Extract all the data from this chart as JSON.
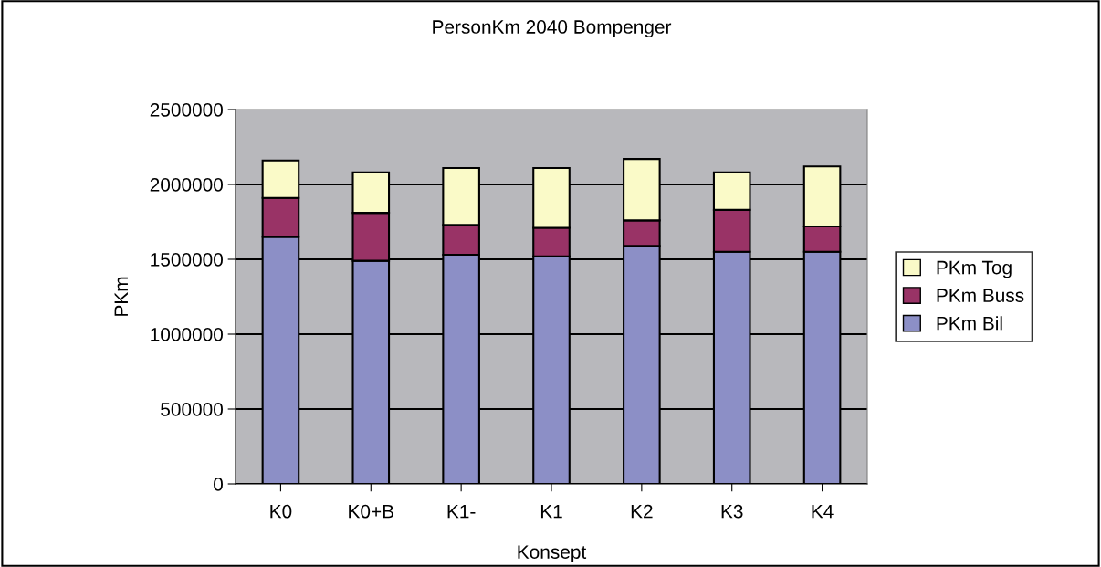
{
  "chart_data": {
    "type": "bar",
    "title": "PersonKm 2040 Bompenger",
    "xlabel": "Konsept",
    "ylabel": "PKm",
    "categories": [
      "K0",
      "K0+B",
      "K1-",
      "K1",
      "K2",
      "K3",
      "K4"
    ],
    "stacked": true,
    "series": [
      {
        "name": "PKm Bil",
        "color": "#8c8fc6",
        "values": [
          1650000,
          1490000,
          1530000,
          1520000,
          1590000,
          1550000,
          1550000
        ]
      },
      {
        "name": "PKm Buss",
        "color": "#993366",
        "values": [
          260000,
          320000,
          200000,
          190000,
          170000,
          280000,
          170000
        ]
      },
      {
        "name": "PKm Tog",
        "color": "#fafac8",
        "values": [
          250000,
          270000,
          380000,
          400000,
          410000,
          250000,
          400000
        ]
      }
    ],
    "ylim": [
      0,
      2500000
    ],
    "yticks": [
      0,
      500000,
      1000000,
      1500000,
      2000000,
      2500000
    ],
    "grid": "y",
    "legend": "right"
  }
}
